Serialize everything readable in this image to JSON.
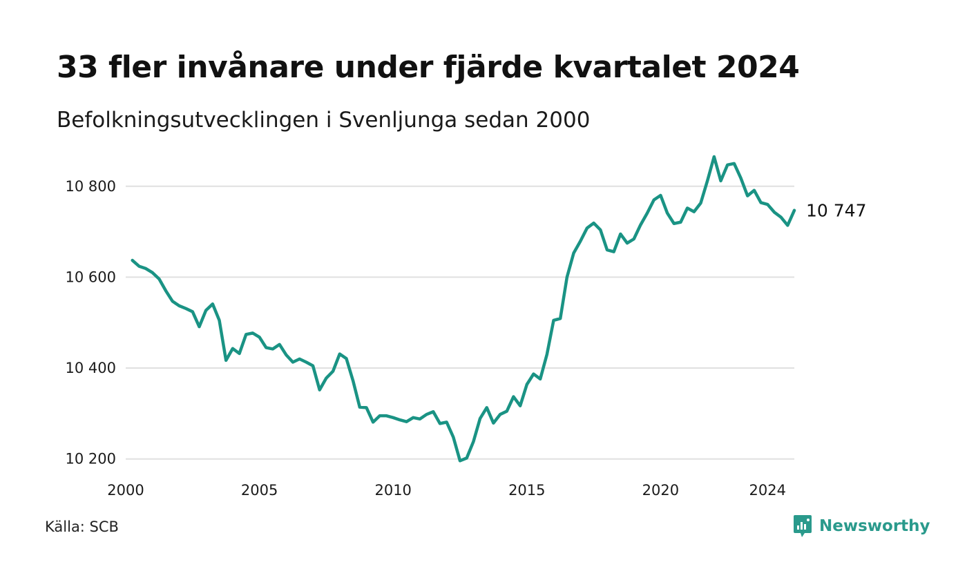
{
  "title": "33 fler invånare under fjärde kvartalet 2024",
  "subtitle": "Befolkningsutvecklingen i Svenljunga sedan 2000",
  "source": "Källa: SCB",
  "brand": {
    "name": "Newsworthy",
    "icon": "newsworthy-logo-icon",
    "color": "#2a9a8c"
  },
  "chart_data": {
    "type": "line",
    "title": "33 fler invånare under fjärde kvartalet 2024",
    "subtitle": "Befolkningsutvecklingen i Svenljunga sedan 2000",
    "xlabel": "",
    "ylabel": "",
    "xlim": [
      2000,
      2025
    ],
    "ylim": [
      10195,
      10868
    ],
    "grid": true,
    "legend": "none",
    "line_color": "#1a9384",
    "grid_color": "#e0e0e0",
    "x_ticks": [
      {
        "value": 2000,
        "label": "2000"
      },
      {
        "value": 2005,
        "label": "2005"
      },
      {
        "value": 2010,
        "label": "2010"
      },
      {
        "value": 2015,
        "label": "2015"
      },
      {
        "value": 2020,
        "label": "2020"
      },
      {
        "value": 2024,
        "label": "2024"
      }
    ],
    "y_ticks": [
      {
        "value": 10200,
        "label": "10 200"
      },
      {
        "value": 10400,
        "label": "10 400"
      },
      {
        "value": 10600,
        "label": "10 600"
      },
      {
        "value": 10800,
        "label": "10 800"
      }
    ],
    "end_label": "10 747",
    "series": [
      {
        "values": [
          [
            2000.25,
            10637
          ],
          [
            2000.5,
            10624
          ],
          [
            2000.75,
            10619
          ],
          [
            2001.0,
            10610
          ],
          [
            2001.25,
            10596
          ],
          [
            2001.5,
            10570
          ],
          [
            2001.75,
            10547
          ],
          [
            2002.0,
            10537
          ],
          [
            2002.25,
            10531
          ],
          [
            2002.5,
            10524
          ],
          [
            2002.75,
            10491
          ],
          [
            2003.0,
            10527
          ],
          [
            2003.25,
            10541
          ],
          [
            2003.5,
            10505
          ],
          [
            2003.75,
            10417
          ],
          [
            2004.0,
            10443
          ],
          [
            2004.25,
            10432
          ],
          [
            2004.5,
            10474
          ],
          [
            2004.75,
            10477
          ],
          [
            2005.0,
            10468
          ],
          [
            2005.25,
            10445
          ],
          [
            2005.5,
            10442
          ],
          [
            2005.75,
            10452
          ],
          [
            2006.0,
            10429
          ],
          [
            2006.25,
            10413
          ],
          [
            2006.5,
            10420
          ],
          [
            2006.75,
            10413
          ],
          [
            2007.0,
            10405
          ],
          [
            2007.25,
            10352
          ],
          [
            2007.5,
            10378
          ],
          [
            2007.75,
            10393
          ],
          [
            2008.0,
            10431
          ],
          [
            2008.25,
            10421
          ],
          [
            2008.5,
            10372
          ],
          [
            2008.75,
            10314
          ],
          [
            2009.0,
            10313
          ],
          [
            2009.25,
            10281
          ],
          [
            2009.5,
            10295
          ],
          [
            2009.75,
            10295
          ],
          [
            2010.0,
            10291
          ],
          [
            2010.25,
            10286
          ],
          [
            2010.5,
            10282
          ],
          [
            2010.75,
            10291
          ],
          [
            2011.0,
            10288
          ],
          [
            2011.25,
            10298
          ],
          [
            2011.5,
            10304
          ],
          [
            2011.75,
            10278
          ],
          [
            2012.0,
            10281
          ],
          [
            2012.25,
            10248
          ],
          [
            2012.5,
            10196
          ],
          [
            2012.75,
            10202
          ],
          [
            2013.0,
            10238
          ],
          [
            2013.25,
            10289
          ],
          [
            2013.5,
            10313
          ],
          [
            2013.75,
            10279
          ],
          [
            2014.0,
            10298
          ],
          [
            2014.25,
            10305
          ],
          [
            2014.5,
            10337
          ],
          [
            2014.75,
            10317
          ],
          [
            2015.0,
            10364
          ],
          [
            2015.25,
            10387
          ],
          [
            2015.5,
            10376
          ],
          [
            2015.75,
            10430
          ],
          [
            2016.0,
            10505
          ],
          [
            2016.25,
            10509
          ],
          [
            2016.5,
            10600
          ],
          [
            2016.75,
            10653
          ],
          [
            2017.0,
            10679
          ],
          [
            2017.25,
            10708
          ],
          [
            2017.5,
            10719
          ],
          [
            2017.75,
            10704
          ],
          [
            2018.0,
            10660
          ],
          [
            2018.25,
            10656
          ],
          [
            2018.5,
            10695
          ],
          [
            2018.75,
            10675
          ],
          [
            2019.0,
            10684
          ],
          [
            2019.25,
            10715
          ],
          [
            2019.5,
            10741
          ],
          [
            2019.75,
            10770
          ],
          [
            2020.0,
            10780
          ],
          [
            2020.25,
            10741
          ],
          [
            2020.5,
            10718
          ],
          [
            2020.75,
            10721
          ],
          [
            2021.0,
            10752
          ],
          [
            2021.25,
            10744
          ],
          [
            2021.5,
            10763
          ],
          [
            2021.75,
            10812
          ],
          [
            2022.0,
            10865
          ],
          [
            2022.25,
            10812
          ],
          [
            2022.5,
            10847
          ],
          [
            2022.75,
            10850
          ],
          [
            2023.0,
            10818
          ],
          [
            2023.25,
            10779
          ],
          [
            2023.5,
            10791
          ],
          [
            2023.75,
            10764
          ],
          [
            2024.0,
            10760
          ],
          [
            2024.25,
            10743
          ],
          [
            2024.5,
            10732
          ],
          [
            2024.75,
            10714
          ],
          [
            2025.0,
            10747
          ]
        ]
      }
    ]
  }
}
